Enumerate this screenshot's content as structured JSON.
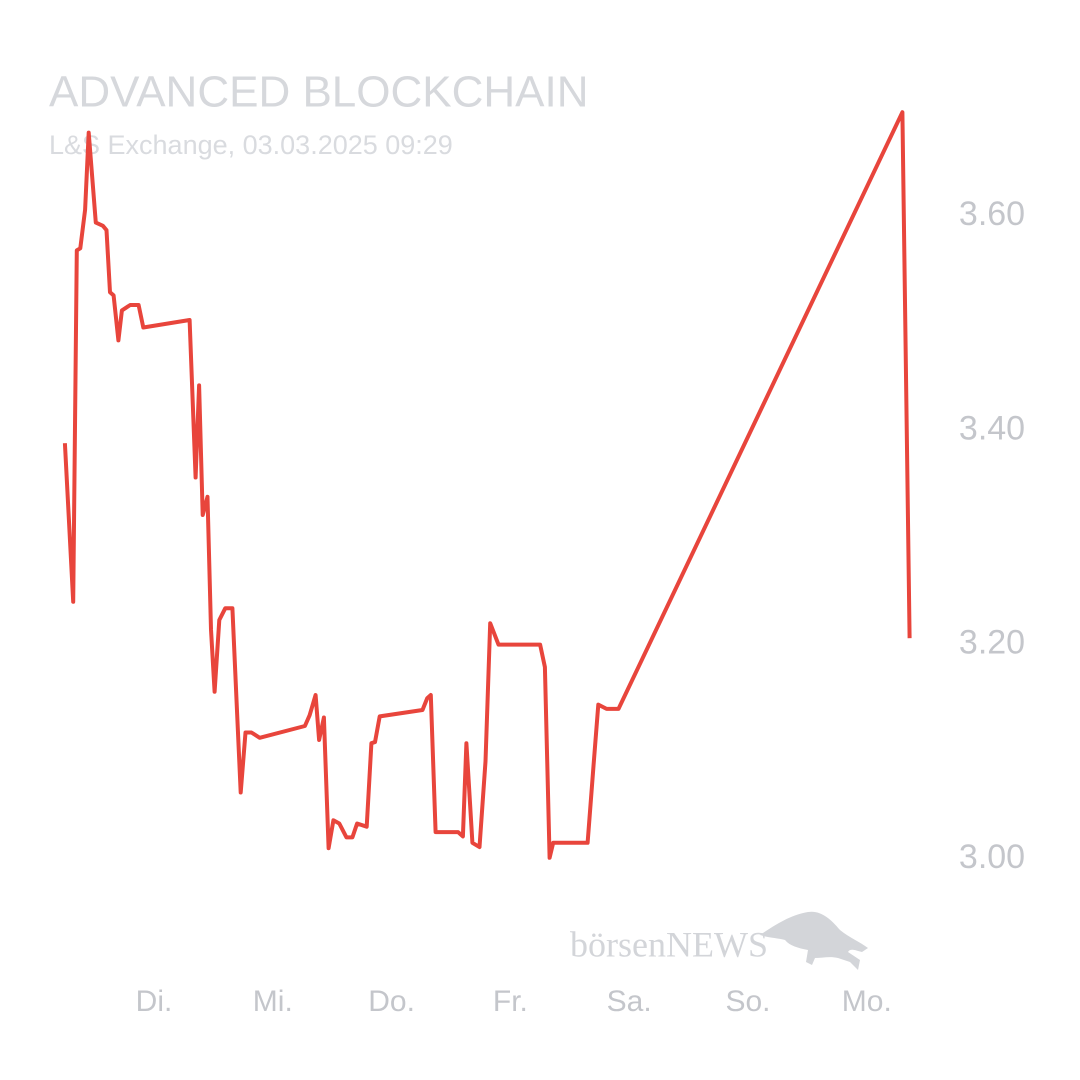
{
  "chart_data": {
    "type": "line",
    "title": "ADVANCED BLOCKCHAIN",
    "subtitle": "L&S Exchange, 03.03.2025 09:29",
    "watermark": "börsenNEWS",
    "color": "#e8453c",
    "x": [
      0.25,
      0.32,
      0.35,
      0.38,
      0.42,
      0.45,
      0.51,
      0.57,
      0.6,
      0.63,
      0.66,
      0.7,
      0.73,
      0.8,
      0.87,
      0.91,
      1.3,
      1.35,
      1.38,
      1.41,
      1.45,
      1.48,
      1.51,
      1.55,
      1.6,
      1.66,
      1.7,
      1.73,
      1.77,
      1.82,
      1.89,
      2.27,
      2.31,
      2.36,
      2.39,
      2.43,
      2.47,
      2.51,
      2.56,
      2.62,
      2.67,
      2.71,
      2.79,
      2.83,
      2.86,
      2.9,
      3.26,
      3.3,
      3.33,
      3.37,
      3.56,
      3.6,
      3.63,
      3.68,
      3.74,
      3.79,
      3.83,
      3.9,
      4.25,
      4.29,
      4.33,
      4.36,
      4.65,
      4.7,
      4.74,
      4.81,
      4.91,
      7.3,
      7.36
    ],
    "values": [
      3.388,
      3.24,
      3.568,
      3.57,
      3.606,
      3.678,
      3.594,
      3.591,
      3.587,
      3.529,
      3.526,
      3.484,
      3.512,
      3.517,
      3.517,
      3.496,
      3.503,
      3.356,
      3.442,
      3.321,
      3.338,
      3.214,
      3.156,
      3.223,
      3.234,
      3.234,
      3.134,
      3.062,
      3.118,
      3.118,
      3.113,
      3.124,
      3.134,
      3.153,
      3.111,
      3.132,
      3.01,
      3.036,
      3.033,
      3.02,
      3.02,
      3.033,
      3.03,
      3.108,
      3.109,
      3.133,
      3.139,
      3.15,
      3.153,
      3.025,
      3.025,
      3.021,
      3.108,
      3.015,
      3.011,
      3.091,
      3.22,
      3.2,
      3.2,
      3.179,
      3.001,
      3.015,
      3.015,
      3.088,
      3.144,
      3.14,
      3.14,
      3.697,
      3.206
    ],
    "xlim": [
      0,
      8
    ],
    "xticks": [
      {
        "value": 1,
        "label": "Di."
      },
      {
        "value": 2,
        "label": "Mi."
      },
      {
        "value": 3,
        "label": "Do."
      },
      {
        "value": 4,
        "label": "Fr."
      },
      {
        "value": 5,
        "label": "Sa."
      },
      {
        "value": 6,
        "label": "So."
      },
      {
        "value": 7,
        "label": "Mo."
      }
    ],
    "ylim": [
      2.9,
      3.7
    ],
    "yticks": [
      {
        "value": 3.0,
        "label": "3.00"
      },
      {
        "value": 3.2,
        "label": "3.20"
      },
      {
        "value": 3.4,
        "label": "3.40"
      },
      {
        "value": 3.6,
        "label": "3.60"
      }
    ],
    "grid": false
  }
}
